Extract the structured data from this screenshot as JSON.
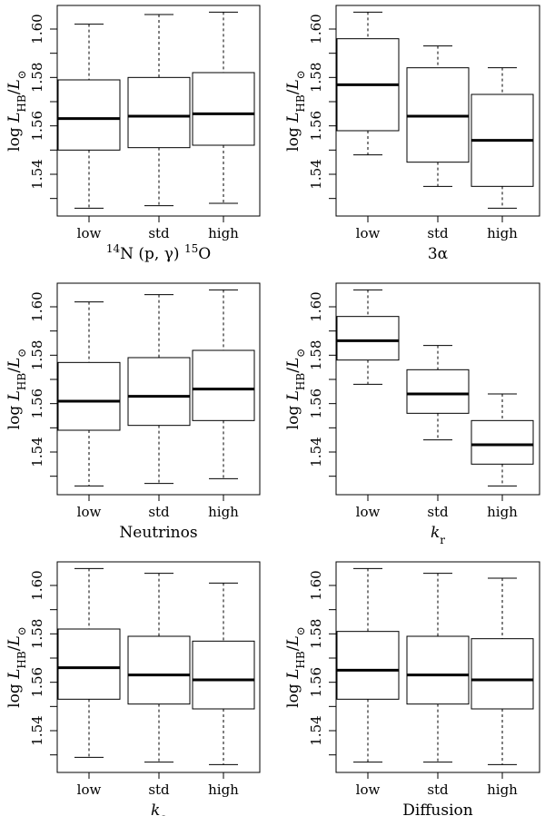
{
  "chart_data": [
    {
      "type": "boxplot",
      "xlabel": "¹⁴N (p, γ) ¹⁵O",
      "ylabel": "log L_HB/L_⊙",
      "ylim": [
        1.52,
        1.61
      ],
      "yticks": [
        "1.54",
        "1.56",
        "1.58",
        "1.60"
      ],
      "categories": [
        "low",
        "std",
        "high"
      ],
      "boxes": [
        {
          "min": 1.526,
          "q1": 1.55,
          "median": 1.563,
          "q3": 1.579,
          "max": 1.602
        },
        {
          "min": 1.527,
          "q1": 1.551,
          "median": 1.564,
          "q3": 1.58,
          "max": 1.606
        },
        {
          "min": 1.528,
          "q1": 1.552,
          "median": 1.565,
          "q3": 1.582,
          "max": 1.607
        }
      ]
    },
    {
      "type": "boxplot",
      "xlabel": "3α",
      "ylabel": "log L_HB/L_⊙",
      "ylim": [
        1.52,
        1.61
      ],
      "yticks": [
        "1.54",
        "1.56",
        "1.58",
        "1.60"
      ],
      "categories": [
        "low",
        "std",
        "high"
      ],
      "boxes": [
        {
          "min": 1.548,
          "q1": 1.558,
          "median": 1.577,
          "q3": 1.596,
          "max": 1.607
        },
        {
          "min": 1.535,
          "q1": 1.545,
          "median": 1.564,
          "q3": 1.584,
          "max": 1.593
        },
        {
          "min": 1.526,
          "q1": 1.535,
          "median": 1.554,
          "q3": 1.573,
          "max": 1.584
        }
      ]
    },
    {
      "type": "boxplot",
      "xlabel": "Neutrinos",
      "ylabel": "log L_HB/L_⊙",
      "ylim": [
        1.52,
        1.61
      ],
      "yticks": [
        "1.54",
        "1.56",
        "1.58",
        "1.60"
      ],
      "categories": [
        "low",
        "std",
        "high"
      ],
      "boxes": [
        {
          "min": 1.526,
          "q1": 1.549,
          "median": 1.561,
          "q3": 1.577,
          "max": 1.602
        },
        {
          "min": 1.527,
          "q1": 1.551,
          "median": 1.563,
          "q3": 1.579,
          "max": 1.605
        },
        {
          "min": 1.529,
          "q1": 1.553,
          "median": 1.566,
          "q3": 1.582,
          "max": 1.607
        }
      ]
    },
    {
      "type": "boxplot",
      "xlabel": "k_r",
      "ylabel": "log L_HB/L_⊙",
      "ylim": [
        1.52,
        1.61
      ],
      "yticks": [
        "1.54",
        "1.56",
        "1.58",
        "1.60"
      ],
      "categories": [
        "low",
        "std",
        "high"
      ],
      "boxes": [
        {
          "min": 1.568,
          "q1": 1.578,
          "median": 1.586,
          "q3": 1.596,
          "max": 1.607
        },
        {
          "min": 1.545,
          "q1": 1.556,
          "median": 1.564,
          "q3": 1.574,
          "max": 1.584
        },
        {
          "min": 1.526,
          "q1": 1.535,
          "median": 1.543,
          "q3": 1.553,
          "max": 1.564
        }
      ]
    },
    {
      "type": "boxplot",
      "xlabel": "k_c",
      "ylabel": "log L_HB/L_⊙",
      "ylim": [
        1.52,
        1.61
      ],
      "yticks": [
        "1.54",
        "1.56",
        "1.58",
        "1.60"
      ],
      "categories": [
        "low",
        "std",
        "high"
      ],
      "boxes": [
        {
          "min": 1.529,
          "q1": 1.553,
          "median": 1.566,
          "q3": 1.582,
          "max": 1.607
        },
        {
          "min": 1.527,
          "q1": 1.551,
          "median": 1.563,
          "q3": 1.579,
          "max": 1.605
        },
        {
          "min": 1.526,
          "q1": 1.549,
          "median": 1.561,
          "q3": 1.577,
          "max": 1.601
        }
      ]
    },
    {
      "type": "boxplot",
      "xlabel": "Diffusion",
      "ylabel": "log L_HB/L_⊙",
      "ylim": [
        1.52,
        1.61
      ],
      "yticks": [
        "1.54",
        "1.56",
        "1.58",
        "1.60"
      ],
      "categories": [
        "low",
        "std",
        "high"
      ],
      "boxes": [
        {
          "min": 1.527,
          "q1": 1.553,
          "median": 1.565,
          "q3": 1.581,
          "max": 1.607
        },
        {
          "min": 1.527,
          "q1": 1.551,
          "median": 1.563,
          "q3": 1.579,
          "max": 1.605
        },
        {
          "min": 1.526,
          "q1": 1.549,
          "median": 1.561,
          "q3": 1.578,
          "max": 1.603
        }
      ]
    }
  ]
}
